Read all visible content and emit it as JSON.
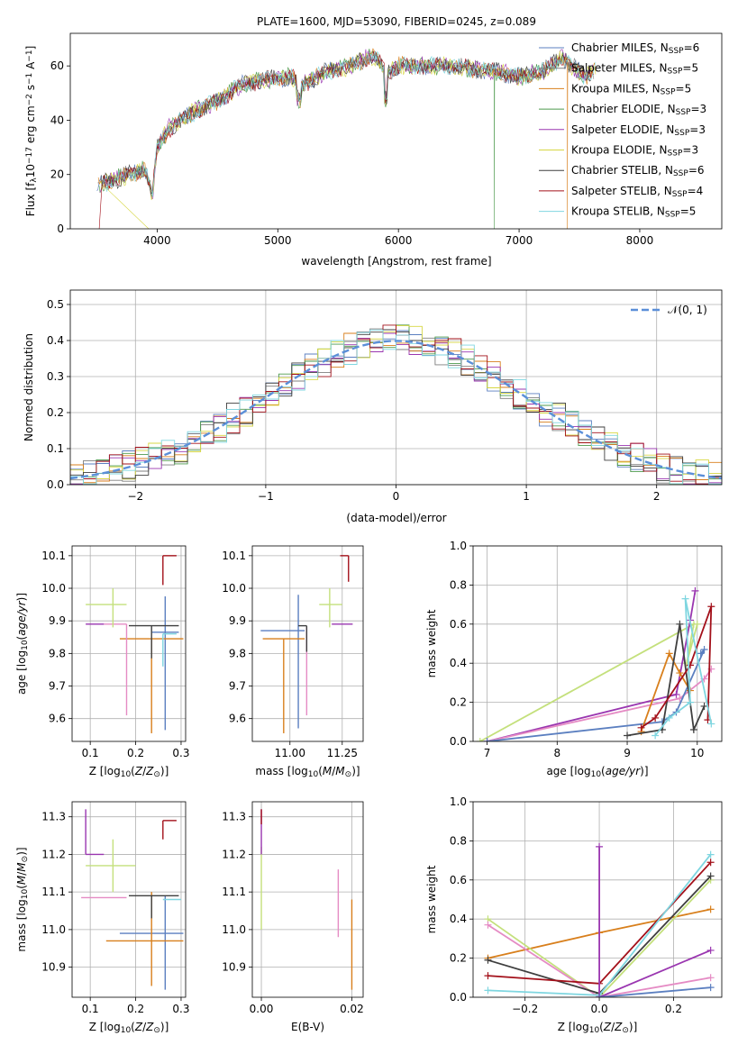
{
  "chart_data": [
    {
      "id": "spectrum",
      "type": "line",
      "title": "PLATE=1600, MJD=53090, FIBERID=0245, z=0.089",
      "xlabel": "wavelength [Angstrom, rest frame]",
      "ylabel": "Flux [fλ10⁻¹⁷ erg cm⁻² s⁻¹ A⁻¹]",
      "xlim": [
        3280,
        8680
      ],
      "ylim": [
        0,
        72
      ],
      "xticks": [
        4000,
        5000,
        6000,
        7000,
        8000
      ],
      "yticks": [
        0,
        20,
        40,
        60
      ],
      "grid": false,
      "legend_position": "top-right",
      "series": [
        {
          "name": "Chabrier MILES, N_SSP=6",
          "color": "#5b7fc0"
        },
        {
          "name": "Salpeter MILES, N_SSP=5",
          "color": "#7f7f7f"
        },
        {
          "name": "Kroupa MILES, N_SSP=5",
          "color": "#d87f1c"
        },
        {
          "name": "Chabrier ELODIE, N_SSP=3",
          "color": "#4d9a4d"
        },
        {
          "name": "Salpeter ELODIE, N_SSP=3",
          "color": "#9a36b0"
        },
        {
          "name": "Kroupa ELODIE, N_SSP=3",
          "color": "#d7d744"
        },
        {
          "name": "Chabrier STELIB, N_SSP=6",
          "color": "#3f3f3f"
        },
        {
          "name": "Salpeter STELIB, N_SSP=4",
          "color": "#a3101a"
        },
        {
          "name": "Kroupa STELIB, N_SSP=5",
          "color": "#7fd6e0"
        }
      ],
      "legend_labels": [
        {
          "pre": "Chabrier MILES, N",
          "sub": "SSP",
          "post": "=6"
        },
        {
          "pre": "Salpeter MILES, N",
          "sub": "SSP",
          "post": "=5"
        },
        {
          "pre": "Kroupa MILES, N",
          "sub": "SSP",
          "post": "=5"
        },
        {
          "pre": "Chabrier ELODIE, N",
          "sub": "SSP",
          "post": "=3"
        },
        {
          "pre": "Salpeter ELODIE, N",
          "sub": "SSP",
          "post": "=3"
        },
        {
          "pre": "Kroupa ELODIE, N",
          "sub": "SSP",
          "post": "=3"
        },
        {
          "pre": "Chabrier STELIB, N",
          "sub": "SSP",
          "post": "=6"
        },
        {
          "pre": "Salpeter STELIB, N",
          "sub": "SSP",
          "post": "=4"
        },
        {
          "pre": "Kroupa STELIB, N",
          "sub": "SSP",
          "post": "=5"
        }
      ],
      "continuum": [
        [
          3500,
          16
        ],
        [
          3700,
          19
        ],
        [
          3900,
          22
        ],
        [
          3960,
          12
        ],
        [
          4000,
          30
        ],
        [
          4100,
          37
        ],
        [
          4300,
          43
        ],
        [
          4500,
          47
        ],
        [
          4700,
          53
        ],
        [
          4900,
          55
        ],
        [
          5100,
          56
        ],
        [
          5200,
          53
        ],
        [
          5400,
          58
        ],
        [
          5600,
          60
        ],
        [
          5800,
          64
        ],
        [
          5900,
          57
        ],
        [
          6000,
          60
        ],
        [
          6200,
          60
        ],
        [
          6400,
          60
        ],
        [
          6600,
          59
        ],
        [
          6800,
          58
        ],
        [
          7000,
          56
        ],
        [
          7200,
          58
        ],
        [
          7350,
          63
        ],
        [
          7550,
          56
        ],
        [
          7650,
          59
        ]
      ]
    },
    {
      "id": "residuals",
      "type": "histogram",
      "xlabel": "(data-model)/error",
      "ylabel": "Normed distribution",
      "xlim": [
        -2.5,
        2.5
      ],
      "ylim": [
        0,
        0.54
      ],
      "xticks": [
        -2,
        -1,
        0,
        1,
        2
      ],
      "yticks": [
        0.0,
        0.1,
        0.2,
        0.3,
        0.4,
        0.5
      ],
      "grid": true,
      "legend": "𝒩(0, 1)",
      "reference_curve": "standard normal pdf, dashed",
      "bin_width": 0.1
    },
    {
      "id": "age-vs-Z",
      "type": "errorbar",
      "xlabel": "Z [log₁₀(Z/Z⊙)]",
      "ylabel": "age  [log₁₀(age/yr)]",
      "xlim": [
        0.06,
        0.31
      ],
      "ylim": [
        9.53,
        10.13
      ],
      "xticks": [
        0.1,
        0.2,
        0.3
      ],
      "yticks": [
        9.6,
        9.7,
        9.8,
        9.9,
        10.0,
        10.1
      ],
      "grid": true,
      "points": [
        {
          "x": 0.265,
          "y": 9.865,
          "xerr": [
            0.03,
            0.03
          ],
          "yerr": [
            0.3,
            0.11
          ],
          "color": "#5b7fc0"
        },
        {
          "x": 0.235,
          "y": 9.845,
          "xerr": [
            0.07,
            0.07
          ],
          "yerr": [
            0.29,
            0.0
          ],
          "color": "#d87f1c"
        },
        {
          "x": 0.18,
          "y": 9.89,
          "xerr": [
            0.05,
            0.0
          ],
          "yerr": [
            0.28,
            0.0
          ],
          "color": "#e58bc4"
        },
        {
          "x": 0.09,
          "y": 9.89,
          "xerr": [
            0.0,
            0.04
          ],
          "yerr": [
            0.0,
            0.0
          ],
          "color": "#9a36b0"
        },
        {
          "x": 0.15,
          "y": 9.95,
          "xerr": [
            0.06,
            0.03
          ],
          "yerr": [
            0.07,
            0.05
          ],
          "color": "#c4e07c"
        },
        {
          "x": 0.235,
          "y": 9.885,
          "xerr": [
            0.05,
            0.06
          ],
          "yerr": [
            0.1,
            0.0
          ],
          "color": "#3f3f3f"
        },
        {
          "x": 0.26,
          "y": 10.1,
          "xerr": [
            0.0,
            0.03
          ],
          "yerr": [
            0.09,
            0.0
          ],
          "color": "#a3101a"
        },
        {
          "x": 0.26,
          "y": 9.86,
          "xerr": [
            0.0,
            0.03
          ],
          "yerr": [
            0.1,
            0.0
          ],
          "color": "#7fd6e0"
        }
      ]
    },
    {
      "id": "age-vs-mass",
      "type": "errorbar",
      "xlabel": "mass [log₁₀(M/M⊙)]",
      "ylabel": "",
      "xlim": [
        10.82,
        11.35
      ],
      "ylim": [
        9.53,
        10.13
      ],
      "xticks": [
        11.0,
        11.25
      ],
      "yticks": [
        9.6,
        9.7,
        9.8,
        9.9,
        10.0,
        10.1
      ],
      "grid": true,
      "points": [
        {
          "x": 11.04,
          "y": 9.87,
          "xerr": [
            0.18,
            0.03
          ],
          "yerr": [
            0.3,
            0.11
          ],
          "color": "#5b7fc0"
        },
        {
          "x": 10.97,
          "y": 9.845,
          "xerr": [
            0.1,
            0.1
          ],
          "yerr": [
            0.29,
            0.0
          ],
          "color": "#d87f1c"
        },
        {
          "x": 11.08,
          "y": 9.88,
          "xerr": [
            0.0,
            0.0
          ],
          "yerr": [
            0.27,
            0.0
          ],
          "color": "#e58bc4"
        },
        {
          "x": 11.2,
          "y": 9.89,
          "xerr": [
            0.0,
            0.1
          ],
          "yerr": [
            0.0,
            0.0
          ],
          "color": "#9a36b0"
        },
        {
          "x": 11.19,
          "y": 9.95,
          "xerr": [
            0.05,
            0.06
          ],
          "yerr": [
            0.07,
            0.05
          ],
          "color": "#c4e07c"
        },
        {
          "x": 11.08,
          "y": 9.885,
          "xerr": [
            0.04,
            0.0
          ],
          "yerr": [
            0.08,
            0.0
          ],
          "color": "#3f3f3f"
        },
        {
          "x": 11.28,
          "y": 10.1,
          "xerr": [
            0.04,
            0.0
          ],
          "yerr": [
            0.08,
            0.0
          ],
          "color": "#a3101a"
        }
      ]
    },
    {
      "id": "mass-weight-vs-age",
      "type": "line",
      "xlabel": "age  [log₁₀(age/yr)]",
      "ylabel": "mass weight",
      "xlim": [
        6.8,
        10.35
      ],
      "ylim": [
        0,
        1.0
      ],
      "xticks": [
        7,
        8,
        9,
        10
      ],
      "yticks": [
        0.0,
        0.2,
        0.4,
        0.6,
        0.8,
        1.0
      ],
      "grid": true,
      "series": [
        {
          "color": "#c4e07c",
          "x": [
            6.9,
            9.95,
            9.85,
            10.0
          ],
          "y": [
            0.0,
            0.6,
            0.4,
            0.6
          ]
        },
        {
          "color": "#9a36b0",
          "x": [
            7.0,
            9.7,
            9.9,
            9.97
          ],
          "y": [
            0.0,
            0.24,
            0.62,
            0.77
          ]
        },
        {
          "color": "#e58bc4",
          "x": [
            7.0,
            9.75,
            10.1,
            10.2
          ],
          "y": [
            0.0,
            0.22,
            0.32,
            0.37
          ]
        },
        {
          "color": "#5b7fc0",
          "x": [
            7.0,
            9.5,
            9.7,
            10.1,
            10.05
          ],
          "y": [
            0.0,
            0.1,
            0.15,
            0.47,
            0.45
          ]
        },
        {
          "color": "#d87f1c",
          "x": [
            9.2,
            9.6,
            9.75,
            9.9
          ],
          "y": [
            0.05,
            0.45,
            0.35,
            0.26
          ]
        },
        {
          "color": "#3f3f3f",
          "x": [
            9.0,
            9.5,
            9.75,
            9.95,
            10.1
          ],
          "y": [
            0.03,
            0.06,
            0.6,
            0.06,
            0.18
          ]
        },
        {
          "color": "#a3101a",
          "x": [
            9.2,
            9.4,
            9.9,
            10.2,
            10.15
          ],
          "y": [
            0.07,
            0.12,
            0.39,
            0.69,
            0.11
          ]
        },
        {
          "color": "#7fd6e0",
          "x": [
            9.4,
            9.6,
            9.9,
            9.83,
            10.2
          ],
          "y": [
            0.03,
            0.12,
            0.2,
            0.73,
            0.09
          ]
        }
      ]
    },
    {
      "id": "mass-vs-Z",
      "type": "errorbar",
      "xlabel": "Z [log₁₀(Z/Z⊙)]",
      "ylabel": "mass [log₁₀(M/M⊙)]",
      "xlim": [
        0.06,
        0.31
      ],
      "ylim": [
        10.82,
        11.34
      ],
      "xticks": [
        0.1,
        0.2,
        0.3
      ],
      "yticks": [
        10.9,
        11.0,
        11.1,
        11.2,
        11.3
      ],
      "grid": true,
      "points": [
        {
          "x": 0.265,
          "y": 10.99,
          "xerr": [
            0.1,
            0.04
          ],
          "yerr": [
            0.15,
            0.1
          ],
          "color": "#5b7fc0"
        },
        {
          "x": 0.235,
          "y": 10.97,
          "xerr": [
            0.1,
            0.07
          ],
          "yerr": [
            0.12,
            0.13
          ],
          "color": "#d87f1c"
        },
        {
          "x": 0.18,
          "y": 11.085,
          "xerr": [
            0.1,
            0.0
          ],
          "yerr": [
            0.0,
            0.0
          ],
          "color": "#e58bc4"
        },
        {
          "x": 0.09,
          "y": 11.2,
          "xerr": [
            0.0,
            0.04
          ],
          "yerr": [
            0.0,
            0.12
          ],
          "color": "#9a36b0"
        },
        {
          "x": 0.15,
          "y": 11.17,
          "xerr": [
            0.06,
            0.05
          ],
          "yerr": [
            0.07,
            0.07
          ],
          "color": "#c4e07c"
        },
        {
          "x": 0.235,
          "y": 11.09,
          "xerr": [
            0.05,
            0.06
          ],
          "yerr": [
            0.06,
            0.0
          ],
          "color": "#3f3f3f"
        },
        {
          "x": 0.26,
          "y": 11.29,
          "xerr": [
            0.0,
            0.03
          ],
          "yerr": [
            0.05,
            0.0
          ],
          "color": "#a3101a"
        },
        {
          "x": 0.26,
          "y": 11.08,
          "xerr": [
            0.0,
            0.04
          ],
          "yerr": [
            0.0,
            0.0
          ],
          "color": "#7fd6e0"
        }
      ]
    },
    {
      "id": "mass-vs-EBV",
      "type": "errorbar",
      "xlabel": "E(B-V)",
      "ylabel": "",
      "xlim": [
        -0.002,
        0.0225
      ],
      "ylim": [
        10.82,
        11.34
      ],
      "xticks": [
        0.0,
        0.02
      ],
      "yticks": [
        10.9,
        11.0,
        11.1,
        11.2,
        11.3
      ],
      "tick_labels_x": [
        "0.00",
        "0.02"
      ],
      "grid": true,
      "points": [
        {
          "x": 0.0,
          "y": 11.1,
          "xerr": [
            0.0,
            0.0
          ],
          "yerr": [
            0.1,
            0.12
          ],
          "color": "#c4e07c"
        },
        {
          "x": 0.0,
          "y": 11.2,
          "xerr": [
            0.0,
            0.0
          ],
          "yerr": [
            0.0,
            0.12
          ],
          "color": "#9a36b0"
        },
        {
          "x": 0.0,
          "y": 11.28,
          "xerr": [
            0.0,
            0.0
          ],
          "yerr": [
            0.0,
            0.04
          ],
          "color": "#a3101a"
        },
        {
          "x": 0.017,
          "y": 11.07,
          "xerr": [
            0.0,
            0.0
          ],
          "yerr": [
            0.09,
            0.09
          ],
          "color": "#e58bc4"
        },
        {
          "x": 0.02,
          "y": 10.96,
          "xerr": [
            0.0,
            0.0
          ],
          "yerr": [
            0.12,
            0.12
          ],
          "color": "#d87f1c"
        }
      ]
    },
    {
      "id": "mass-weight-vs-Z",
      "type": "line",
      "xlabel": "Z [log₁₀(Z/Z⊙)]",
      "ylabel": "mass weight",
      "xlim": [
        -0.34,
        0.33
      ],
      "ylim": [
        0,
        1.0
      ],
      "xticks": [
        -0.2,
        0.0,
        0.2
      ],
      "yticks": [
        0.0,
        0.2,
        0.4,
        0.6,
        0.8,
        1.0
      ],
      "tick_labels_x": [
        "−0.2",
        "0.0",
        "0.2"
      ],
      "grid": true,
      "series": [
        {
          "color": "#d87f1c",
          "x": [
            -0.3,
            0.0,
            0.3
          ],
          "y": [
            0.2,
            0.33,
            0.45
          ]
        },
        {
          "color": "#c4e07c",
          "x": [
            -0.3,
            0.0,
            0.3
          ],
          "y": [
            0.4,
            0.0,
            0.6
          ]
        },
        {
          "color": "#e58bc4",
          "x": [
            -0.3,
            0.0,
            0.3
          ],
          "y": [
            0.37,
            0.0,
            0.1
          ]
        },
        {
          "color": "#3f3f3f",
          "x": [
            -0.3,
            0.0,
            0.3
          ],
          "y": [
            0.19,
            0.02,
            0.62
          ]
        },
        {
          "color": "#a3101a",
          "x": [
            -0.3,
            0.0,
            0.3
          ],
          "y": [
            0.11,
            0.07,
            0.69
          ]
        },
        {
          "color": "#7fd6e0",
          "x": [
            -0.3,
            0.0,
            0.3
          ],
          "y": [
            0.035,
            0.01,
            0.73
          ]
        },
        {
          "color": "#9a36b0",
          "x": [
            0.0,
            0.0,
            0.3
          ],
          "y": [
            0.77,
            0.0,
            0.24
          ]
        },
        {
          "color": "#5b7fc0",
          "x": [
            0.0,
            0.3
          ],
          "y": [
            0.0,
            0.05
          ]
        }
      ]
    }
  ]
}
